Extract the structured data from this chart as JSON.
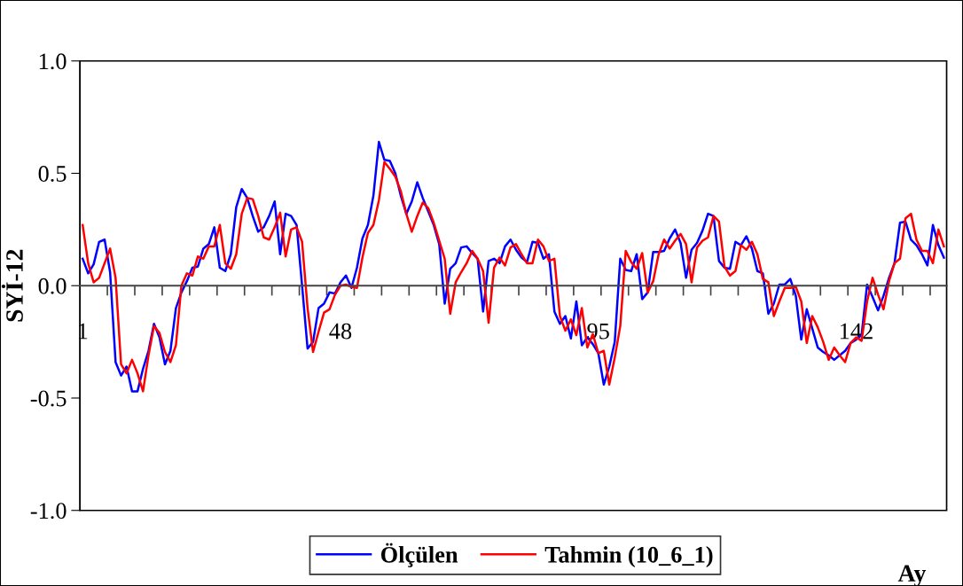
{
  "chart_data": {
    "type": "line",
    "ylabel": "SYİ-12",
    "xlabel": "Ay",
    "x": [
      1,
      2,
      3,
      4,
      5,
      6,
      7,
      8,
      9,
      10,
      11,
      12,
      13,
      14,
      15,
      16,
      17,
      18,
      19,
      20,
      21,
      22,
      23,
      24,
      25,
      26,
      27,
      28,
      29,
      30,
      31,
      32,
      33,
      34,
      35,
      36,
      37,
      38,
      39,
      40,
      41,
      42,
      43,
      44,
      45,
      46,
      47,
      48,
      49,
      50,
      51,
      52,
      53,
      54,
      55,
      56,
      57,
      58,
      59,
      60,
      61,
      62,
      63,
      64,
      65,
      66,
      67,
      68,
      69,
      70,
      71,
      72,
      73,
      74,
      75,
      76,
      77,
      78,
      79,
      80,
      81,
      82,
      83,
      84,
      85,
      86,
      87,
      88,
      89,
      90,
      91,
      92,
      93,
      94,
      95,
      96,
      97,
      98,
      99,
      100,
      101,
      102,
      103,
      104,
      105,
      106,
      107,
      108,
      109,
      110,
      111,
      112,
      113,
      114,
      115,
      116,
      117,
      118,
      119,
      120,
      121,
      122,
      123,
      124,
      125,
      126,
      127,
      128,
      129,
      130,
      131,
      132,
      133,
      134,
      135,
      136,
      137,
      138,
      139,
      140,
      141,
      142,
      143,
      144,
      145,
      146,
      147,
      148,
      149,
      150,
      151,
      152,
      153,
      154,
      155,
      156,
      157,
      158
    ],
    "series": [
      {
        "name": "Ölçülen",
        "color": "#0000ff",
        "values": [
          0.12,
          0.055,
          0.095,
          0.195,
          0.205,
          0.06,
          -0.34,
          -0.4,
          -0.36,
          -0.47,
          -0.47,
          -0.37,
          -0.29,
          -0.17,
          -0.23,
          -0.35,
          -0.29,
          -0.1,
          -0.03,
          0.02,
          0.08,
          0.085,
          0.165,
          0.185,
          0.26,
          0.08,
          0.065,
          0.14,
          0.35,
          0.43,
          0.39,
          0.31,
          0.24,
          0.26,
          0.31,
          0.375,
          0.14,
          0.32,
          0.31,
          0.27,
          0.0,
          -0.28,
          -0.25,
          -0.1,
          -0.08,
          -0.03,
          -0.035,
          0.015,
          0.045,
          -0.01,
          0.08,
          0.21,
          0.27,
          0.4,
          0.64,
          0.56,
          0.555,
          0.5,
          0.4,
          0.32,
          0.375,
          0.46,
          0.39,
          0.33,
          0.27,
          0.185,
          -0.08,
          0.075,
          0.1,
          0.17,
          0.175,
          0.145,
          0.12,
          -0.115,
          0.11,
          0.12,
          0.1,
          0.175,
          0.205,
          0.16,
          0.125,
          0.105,
          0.195,
          0.19,
          0.12,
          0.14,
          -0.115,
          -0.17,
          -0.135,
          -0.235,
          -0.07,
          -0.265,
          -0.23,
          -0.26,
          -0.3,
          -0.44,
          -0.36,
          -0.25,
          0.12,
          0.07,
          0.065,
          0.14,
          -0.06,
          -0.03,
          0.15,
          0.15,
          0.155,
          0.21,
          0.25,
          0.19,
          0.035,
          0.16,
          0.19,
          0.245,
          0.32,
          0.31,
          0.11,
          0.08,
          0.075,
          0.195,
          0.18,
          0.22,
          0.165,
          0.065,
          0.055,
          -0.125,
          -0.08,
          0.005,
          0.005,
          0.03,
          -0.045,
          -0.24,
          -0.105,
          -0.19,
          -0.275,
          -0.295,
          -0.31,
          -0.33,
          -0.31,
          -0.29,
          -0.255,
          -0.24,
          -0.22,
          0.005,
          -0.05,
          -0.11,
          -0.045,
          0.035,
          0.1,
          0.28,
          0.285,
          0.205,
          0.18,
          0.14,
          0.09,
          0.27,
          0.18,
          0.125
        ]
      },
      {
        "name": "Tahmin (10_6_1)",
        "color": "#ff0000",
        "values": [
          0.27,
          0.1,
          0.015,
          0.035,
          0.1,
          0.165,
          0.035,
          -0.35,
          -0.39,
          -0.33,
          -0.39,
          -0.47,
          -0.31,
          -0.18,
          -0.21,
          -0.295,
          -0.34,
          -0.265,
          0.0,
          0.055,
          0.045,
          0.13,
          0.12,
          0.175,
          0.175,
          0.27,
          0.1,
          0.075,
          0.14,
          0.32,
          0.39,
          0.385,
          0.31,
          0.215,
          0.205,
          0.26,
          0.325,
          0.13,
          0.25,
          0.26,
          0.195,
          -0.1,
          -0.295,
          -0.205,
          -0.12,
          -0.105,
          -0.04,
          0.0,
          0.005,
          -0.005,
          -0.01,
          0.125,
          0.235,
          0.27,
          0.38,
          0.55,
          0.52,
          0.485,
          0.42,
          0.32,
          0.24,
          0.31,
          0.37,
          0.345,
          0.28,
          0.2,
          0.12,
          -0.125,
          0.015,
          0.06,
          0.1,
          0.155,
          0.12,
          0.065,
          -0.165,
          0.08,
          0.125,
          0.09,
          0.17,
          0.185,
          0.14,
          0.1,
          0.1,
          0.205,
          0.175,
          0.11,
          0.12,
          -0.135,
          -0.2,
          -0.15,
          -0.22,
          -0.1,
          -0.275,
          -0.215,
          -0.3,
          -0.29,
          -0.44,
          -0.32,
          -0.18,
          0.155,
          0.105,
          0.075,
          0.145,
          -0.03,
          0.02,
          0.14,
          0.205,
          0.165,
          0.2,
          0.23,
          0.185,
          0.015,
          0.17,
          0.2,
          0.215,
          0.31,
          0.285,
          0.085,
          0.045,
          0.065,
          0.18,
          0.16,
          0.195,
          0.14,
          0.03,
          0.015,
          -0.135,
          -0.07,
          -0.01,
          -0.01,
          -0.005,
          -0.07,
          -0.255,
          -0.135,
          -0.185,
          -0.25,
          -0.33,
          -0.275,
          -0.31,
          -0.34,
          -0.255,
          -0.23,
          -0.245,
          -0.07,
          0.035,
          -0.04,
          -0.105,
          0.02,
          0.1,
          0.12,
          0.3,
          0.32,
          0.205,
          0.155,
          0.155,
          0.1,
          0.25,
          0.175
        ]
      }
    ],
    "xlim": [
      0.5,
      158.5
    ],
    "xticks": [
      {
        "value": 1,
        "label": "1"
      },
      {
        "value": 48,
        "label": "48"
      },
      {
        "value": 95,
        "label": "95"
      },
      {
        "value": 142,
        "label": "142"
      },
      {
        "value": 5.5,
        "label": null
      },
      {
        "value": 10.5,
        "label": null
      },
      {
        "value": 15.5,
        "label": null
      },
      {
        "value": 20.5,
        "label": null
      },
      {
        "value": 25.5,
        "label": null
      },
      {
        "value": 30.5,
        "label": null
      },
      {
        "value": 35.5,
        "label": null
      },
      {
        "value": 40.5,
        "label": null
      },
      {
        "value": 45.5,
        "label": null
      },
      {
        "value": 50.5,
        "label": null
      },
      {
        "value": 55.5,
        "label": null
      },
      {
        "value": 60.5,
        "label": null
      },
      {
        "value": 65.5,
        "label": null
      },
      {
        "value": 70.5,
        "label": null
      },
      {
        "value": 75.5,
        "label": null
      },
      {
        "value": 80.5,
        "label": null
      },
      {
        "value": 85.5,
        "label": null
      },
      {
        "value": 90.5,
        "label": null
      },
      {
        "value": 95.5,
        "label": null
      },
      {
        "value": 100.5,
        "label": null
      },
      {
        "value": 105.5,
        "label": null
      },
      {
        "value": 110.5,
        "label": null
      },
      {
        "value": 115.5,
        "label": null
      },
      {
        "value": 120.5,
        "label": null
      },
      {
        "value": 125.5,
        "label": null
      },
      {
        "value": 130.5,
        "label": null
      },
      {
        "value": 135.5,
        "label": null
      },
      {
        "value": 140.5,
        "label": null
      },
      {
        "value": 145.5,
        "label": null
      },
      {
        "value": 150.5,
        "label": null
      },
      {
        "value": 155.5,
        "label": null
      }
    ],
    "ylim": [
      -1.0,
      1.0
    ],
    "yticks": [
      {
        "value": -1.0,
        "label": "-1.0"
      },
      {
        "value": -0.5,
        "label": "-0.5"
      },
      {
        "value": 0.0,
        "label": "0.0"
      },
      {
        "value": 0.5,
        "label": "0.5"
      },
      {
        "value": 1.0,
        "label": "1.0"
      }
    ],
    "grid": false,
    "legend": "bottom",
    "marker": "none",
    "line_style": "solid"
  }
}
